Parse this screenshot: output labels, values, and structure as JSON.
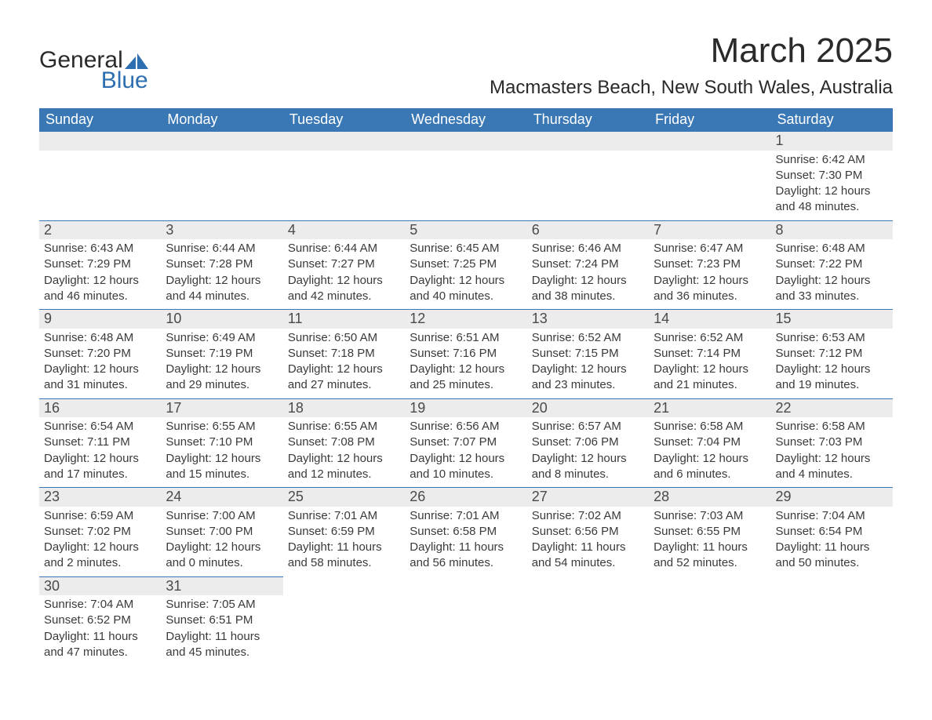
{
  "logo": {
    "text1": "General",
    "text2": "Blue",
    "shape_color": "#2d6fb0"
  },
  "title": "March 2025",
  "location": "Macmasters Beach, New South Wales, Australia",
  "header_bg": "#3a78b5",
  "daynum_bg": "#ececec",
  "border_color": "#3a78b5",
  "weekdays": [
    "Sunday",
    "Monday",
    "Tuesday",
    "Wednesday",
    "Thursday",
    "Friday",
    "Saturday"
  ],
  "weeks": [
    [
      null,
      null,
      null,
      null,
      null,
      null,
      {
        "n": "1",
        "sr": "Sunrise: 6:42 AM",
        "ss": "Sunset: 7:30 PM",
        "d1": "Daylight: 12 hours",
        "d2": "and 48 minutes."
      }
    ],
    [
      {
        "n": "2",
        "sr": "Sunrise: 6:43 AM",
        "ss": "Sunset: 7:29 PM",
        "d1": "Daylight: 12 hours",
        "d2": "and 46 minutes."
      },
      {
        "n": "3",
        "sr": "Sunrise: 6:44 AM",
        "ss": "Sunset: 7:28 PM",
        "d1": "Daylight: 12 hours",
        "d2": "and 44 minutes."
      },
      {
        "n": "4",
        "sr": "Sunrise: 6:44 AM",
        "ss": "Sunset: 7:27 PM",
        "d1": "Daylight: 12 hours",
        "d2": "and 42 minutes."
      },
      {
        "n": "5",
        "sr": "Sunrise: 6:45 AM",
        "ss": "Sunset: 7:25 PM",
        "d1": "Daylight: 12 hours",
        "d2": "and 40 minutes."
      },
      {
        "n": "6",
        "sr": "Sunrise: 6:46 AM",
        "ss": "Sunset: 7:24 PM",
        "d1": "Daylight: 12 hours",
        "d2": "and 38 minutes."
      },
      {
        "n": "7",
        "sr": "Sunrise: 6:47 AM",
        "ss": "Sunset: 7:23 PM",
        "d1": "Daylight: 12 hours",
        "d2": "and 36 minutes."
      },
      {
        "n": "8",
        "sr": "Sunrise: 6:48 AM",
        "ss": "Sunset: 7:22 PM",
        "d1": "Daylight: 12 hours",
        "d2": "and 33 minutes."
      }
    ],
    [
      {
        "n": "9",
        "sr": "Sunrise: 6:48 AM",
        "ss": "Sunset: 7:20 PM",
        "d1": "Daylight: 12 hours",
        "d2": "and 31 minutes."
      },
      {
        "n": "10",
        "sr": "Sunrise: 6:49 AM",
        "ss": "Sunset: 7:19 PM",
        "d1": "Daylight: 12 hours",
        "d2": "and 29 minutes."
      },
      {
        "n": "11",
        "sr": "Sunrise: 6:50 AM",
        "ss": "Sunset: 7:18 PM",
        "d1": "Daylight: 12 hours",
        "d2": "and 27 minutes."
      },
      {
        "n": "12",
        "sr": "Sunrise: 6:51 AM",
        "ss": "Sunset: 7:16 PM",
        "d1": "Daylight: 12 hours",
        "d2": "and 25 minutes."
      },
      {
        "n": "13",
        "sr": "Sunrise: 6:52 AM",
        "ss": "Sunset: 7:15 PM",
        "d1": "Daylight: 12 hours",
        "d2": "and 23 minutes."
      },
      {
        "n": "14",
        "sr": "Sunrise: 6:52 AM",
        "ss": "Sunset: 7:14 PM",
        "d1": "Daylight: 12 hours",
        "d2": "and 21 minutes."
      },
      {
        "n": "15",
        "sr": "Sunrise: 6:53 AM",
        "ss": "Sunset: 7:12 PM",
        "d1": "Daylight: 12 hours",
        "d2": "and 19 minutes."
      }
    ],
    [
      {
        "n": "16",
        "sr": "Sunrise: 6:54 AM",
        "ss": "Sunset: 7:11 PM",
        "d1": "Daylight: 12 hours",
        "d2": "and 17 minutes."
      },
      {
        "n": "17",
        "sr": "Sunrise: 6:55 AM",
        "ss": "Sunset: 7:10 PM",
        "d1": "Daylight: 12 hours",
        "d2": "and 15 minutes."
      },
      {
        "n": "18",
        "sr": "Sunrise: 6:55 AM",
        "ss": "Sunset: 7:08 PM",
        "d1": "Daylight: 12 hours",
        "d2": "and 12 minutes."
      },
      {
        "n": "19",
        "sr": "Sunrise: 6:56 AM",
        "ss": "Sunset: 7:07 PM",
        "d1": "Daylight: 12 hours",
        "d2": "and 10 minutes."
      },
      {
        "n": "20",
        "sr": "Sunrise: 6:57 AM",
        "ss": "Sunset: 7:06 PM",
        "d1": "Daylight: 12 hours",
        "d2": "and 8 minutes."
      },
      {
        "n": "21",
        "sr": "Sunrise: 6:58 AM",
        "ss": "Sunset: 7:04 PM",
        "d1": "Daylight: 12 hours",
        "d2": "and 6 minutes."
      },
      {
        "n": "22",
        "sr": "Sunrise: 6:58 AM",
        "ss": "Sunset: 7:03 PM",
        "d1": "Daylight: 12 hours",
        "d2": "and 4 minutes."
      }
    ],
    [
      {
        "n": "23",
        "sr": "Sunrise: 6:59 AM",
        "ss": "Sunset: 7:02 PM",
        "d1": "Daylight: 12 hours",
        "d2": "and 2 minutes."
      },
      {
        "n": "24",
        "sr": "Sunrise: 7:00 AM",
        "ss": "Sunset: 7:00 PM",
        "d1": "Daylight: 12 hours",
        "d2": "and 0 minutes."
      },
      {
        "n": "25",
        "sr": "Sunrise: 7:01 AM",
        "ss": "Sunset: 6:59 PM",
        "d1": "Daylight: 11 hours",
        "d2": "and 58 minutes."
      },
      {
        "n": "26",
        "sr": "Sunrise: 7:01 AM",
        "ss": "Sunset: 6:58 PM",
        "d1": "Daylight: 11 hours",
        "d2": "and 56 minutes."
      },
      {
        "n": "27",
        "sr": "Sunrise: 7:02 AM",
        "ss": "Sunset: 6:56 PM",
        "d1": "Daylight: 11 hours",
        "d2": "and 54 minutes."
      },
      {
        "n": "28",
        "sr": "Sunrise: 7:03 AM",
        "ss": "Sunset: 6:55 PM",
        "d1": "Daylight: 11 hours",
        "d2": "and 52 minutes."
      },
      {
        "n": "29",
        "sr": "Sunrise: 7:04 AM",
        "ss": "Sunset: 6:54 PM",
        "d1": "Daylight: 11 hours",
        "d2": "and 50 minutes."
      }
    ],
    [
      {
        "n": "30",
        "sr": "Sunrise: 7:04 AM",
        "ss": "Sunset: 6:52 PM",
        "d1": "Daylight: 11 hours",
        "d2": "and 47 minutes."
      },
      {
        "n": "31",
        "sr": "Sunrise: 7:05 AM",
        "ss": "Sunset: 6:51 PM",
        "d1": "Daylight: 11 hours",
        "d2": "and 45 minutes."
      },
      null,
      null,
      null,
      null,
      null
    ]
  ]
}
